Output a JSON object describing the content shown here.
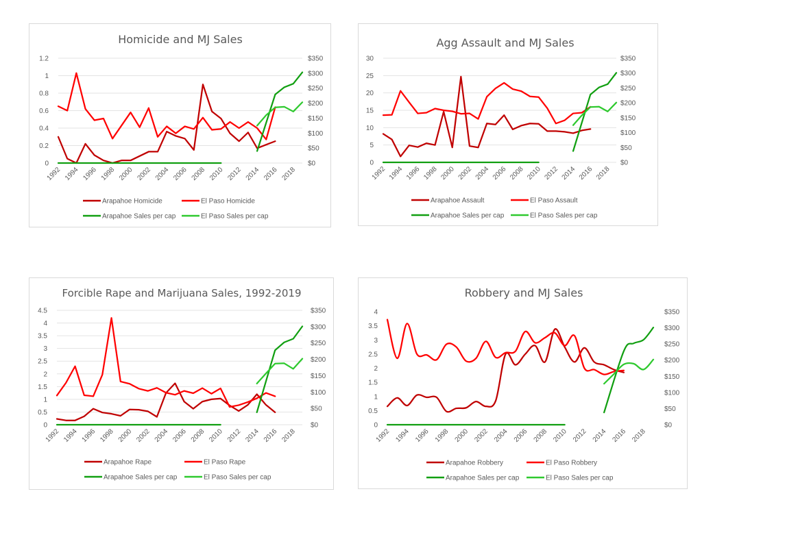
{
  "chart_data": [
    {
      "type": "line",
      "title": "Homicide and MJ Sales",
      "xlabel": "",
      "ylabel": "",
      "y2label": "",
      "x_ticks": [
        "1992",
        "1994",
        "1996",
        "1998",
        "2000",
        "2002",
        "2004",
        "2006",
        "2008",
        "2010",
        "2012",
        "2014",
        "2016",
        "2018"
      ],
      "left_ticks": [
        "0",
        "0.2",
        "0.4",
        "0.6",
        "0.8",
        "1",
        "1.2"
      ],
      "right_ticks": [
        "$0",
        "$50",
        "$100",
        "$150",
        "$200",
        "$250",
        "$300",
        "$350"
      ],
      "ylim": [
        0,
        1.2
      ],
      "y2lim": [
        0,
        350
      ],
      "xlim": [
        1992,
        2019
      ],
      "grid": true,
      "legend_position": "bottom",
      "smooth": false,
      "series": [
        {
          "name": "Arapahoe Homicide",
          "axis": "left",
          "color": "#c00000",
          "x": [
            1992,
            1993,
            1994,
            1995,
            1996,
            1997,
            1998,
            1999,
            2000,
            2001,
            2002,
            2003,
            2004,
            2005,
            2006,
            2007,
            2008,
            2009,
            2010,
            2011,
            2012,
            2013,
            2014,
            2015,
            2016
          ],
          "y": [
            0.3,
            0.05,
            0.0,
            0.22,
            0.09,
            0.03,
            0.0,
            0.03,
            0.03,
            0.08,
            0.13,
            0.13,
            0.36,
            0.31,
            0.28,
            0.15,
            0.9,
            0.59,
            0.51,
            0.34,
            0.25,
            0.35,
            0.17,
            0.21,
            0.25
          ]
        },
        {
          "name": "El Paso Homicide",
          "axis": "left",
          "color": "#ff0000",
          "x": [
            1992,
            1993,
            1994,
            1995,
            1996,
            1997,
            1998,
            1999,
            2000,
            2001,
            2002,
            2003,
            2004,
            2005,
            2006,
            2007,
            2008,
            2009,
            2010,
            2011,
            2012,
            2013,
            2014,
            2015,
            2016
          ],
          "y": [
            0.65,
            0.6,
            1.03,
            0.62,
            0.49,
            0.51,
            0.28,
            0.43,
            0.58,
            0.41,
            0.63,
            0.3,
            0.42,
            0.34,
            0.42,
            0.39,
            0.52,
            0.38,
            0.39,
            0.47,
            0.4,
            0.47,
            0.4,
            0.27,
            0.64
          ]
        },
        {
          "name": "Arapahoe Sales per cap",
          "axis": "right",
          "color": "#119f11",
          "x": [
            1992,
            2010,
            null,
            2014,
            2016,
            2017,
            2018,
            2019
          ],
          "y": [
            0,
            0,
            null,
            40,
            229,
            253,
            265,
            303
          ]
        },
        {
          "name": "El Paso Sales per cap",
          "axis": "right",
          "color": "#2ec92e",
          "x": [
            2014,
            2015,
            2016,
            2017,
            2018,
            2019
          ],
          "y": [
            125,
            160,
            186,
            188,
            172,
            203
          ]
        }
      ]
    },
    {
      "type": "line",
      "title": "Agg Assault and MJ Sales",
      "xlabel": "",
      "ylabel": "",
      "y2label": "",
      "x_ticks": [
        "1992",
        "1994",
        "1996",
        "1998",
        "2000",
        "2002",
        "2004",
        "2006",
        "2008",
        "2010",
        "2012",
        "2014",
        "2016",
        "2018"
      ],
      "left_ticks": [
        "0",
        "5",
        "10",
        "15",
        "20",
        "25",
        "30"
      ],
      "right_ticks": [
        "$0",
        "$50",
        "$100",
        "$150",
        "$200",
        "$250",
        "$300",
        "$350"
      ],
      "ylim": [
        0,
        30
      ],
      "y2lim": [
        0,
        350
      ],
      "xlim": [
        1992,
        2019
      ],
      "grid": true,
      "legend_position": "bottom",
      "smooth": false,
      "series": [
        {
          "name": "Arapahoe Assault",
          "axis": "left",
          "color": "#c00000",
          "x": [
            1992,
            1993,
            1994,
            1995,
            1996,
            1997,
            1998,
            1999,
            2000,
            2001,
            2002,
            2003,
            2004,
            2005,
            2006,
            2007,
            2008,
            2009,
            2010,
            2011,
            2012,
            2013,
            2014,
            2015,
            2016
          ],
          "y": [
            8.2,
            6.6,
            1.7,
            4.9,
            4.4,
            5.5,
            5.0,
            14.6,
            4.3,
            24.7,
            4.7,
            4.3,
            11.2,
            10.9,
            13.6,
            9.5,
            10.6,
            11.2,
            11.1,
            9.0,
            9.0,
            8.8,
            8.4,
            9.2,
            9.6
          ]
        },
        {
          "name": "El Paso Assault",
          "axis": "left",
          "color": "#ff0000",
          "x": [
            1992,
            1993,
            1994,
            1995,
            1996,
            1997,
            1998,
            1999,
            2000,
            2001,
            2002,
            2003,
            2004,
            2005,
            2006,
            2007,
            2008,
            2009,
            2010,
            2011,
            2012,
            2013,
            2014,
            2015,
            2016
          ],
          "y": [
            13.6,
            13.7,
            20.6,
            17.3,
            14.1,
            14.3,
            15.5,
            15.0,
            14.7,
            14.0,
            14.1,
            12.5,
            18.9,
            21.3,
            22.9,
            21.1,
            20.5,
            19.0,
            18.8,
            15.6,
            11.2,
            12.1,
            14.1,
            14.3,
            16.0
          ]
        },
        {
          "name": "Arapahoe Sales per cap",
          "axis": "right",
          "color": "#119f11",
          "x": [
            1992,
            2010,
            null,
            2014,
            2016,
            2017,
            2018,
            2019
          ],
          "y": [
            0,
            0,
            null,
            38,
            228,
            252,
            263,
            301
          ]
        },
        {
          "name": "El Paso Sales per cap",
          "axis": "right",
          "color": "#2ec92e",
          "x": [
            2014,
            2015,
            2016,
            2017,
            2018,
            2019
          ],
          "y": [
            125,
            158,
            186,
            187,
            171,
            201
          ]
        }
      ]
    },
    {
      "type": "line",
      "title": "Forcible Rape and Marijuana Sales, 1992-2019",
      "xlabel": "",
      "ylabel": "",
      "y2label": "",
      "x_ticks": [
        "1992",
        "1994",
        "1996",
        "1998",
        "2000",
        "2002",
        "2004",
        "2006",
        "2008",
        "2010",
        "2012",
        "2014",
        "2016",
        "2018"
      ],
      "left_ticks": [
        "0",
        "0.5",
        "1",
        "1.5",
        "2",
        "2.5",
        "3",
        "3.5",
        "4",
        "4.5"
      ],
      "right_ticks": [
        "$0",
        "$50",
        "$100",
        "$150",
        "$200",
        "$250",
        "$300",
        "$350"
      ],
      "ylim": [
        0,
        4.5
      ],
      "y2lim": [
        0,
        350
      ],
      "xlim": [
        1992,
        2019
      ],
      "grid": true,
      "legend_position": "bottom",
      "smooth": false,
      "series": [
        {
          "name": "Arapahoe Rape",
          "axis": "left",
          "color": "#c00000",
          "x": [
            1992,
            1993,
            1994,
            1995,
            1996,
            1997,
            1998,
            1999,
            2000,
            2001,
            2002,
            2003,
            2004,
            2005,
            2006,
            2007,
            2008,
            2009,
            2010,
            2011,
            2012,
            2013,
            2014,
            2015,
            2016
          ],
          "y": [
            0.23,
            0.17,
            0.17,
            0.33,
            0.63,
            0.48,
            0.43,
            0.35,
            0.6,
            0.59,
            0.53,
            0.31,
            1.25,
            1.63,
            0.91,
            0.63,
            0.91,
            1.0,
            1.03,
            0.76,
            0.54,
            0.78,
            1.2,
            0.78,
            0.49
          ]
        },
        {
          "name": "El Paso Rape",
          "axis": "left",
          "color": "#ff0000",
          "x": [
            1992,
            1993,
            1994,
            1995,
            1996,
            1997,
            1998,
            1999,
            2000,
            2001,
            2002,
            2003,
            2004,
            2005,
            2006,
            2007,
            2008,
            2009,
            2010,
            2011,
            2012,
            2013,
            2014,
            2015,
            2016
          ],
          "y": [
            1.15,
            1.65,
            2.3,
            1.16,
            1.12,
            1.97,
            4.2,
            1.7,
            1.61,
            1.42,
            1.33,
            1.45,
            1.26,
            1.18,
            1.33,
            1.24,
            1.44,
            1.22,
            1.43,
            0.7,
            0.77,
            0.89,
            1.04,
            1.25,
            1.12
          ]
        },
        {
          "name": "Arapahoe Sales per cap",
          "axis": "right",
          "color": "#119f11",
          "x": [
            1992,
            2010,
            null,
            2014,
            2016,
            2017,
            2018,
            2019
          ],
          "y": [
            0,
            0,
            null,
            38,
            228,
            252,
            263,
            301
          ]
        },
        {
          "name": "El Paso Sales per cap",
          "axis": "right",
          "color": "#2ec92e",
          "x": [
            2014,
            2015,
            2016,
            2017,
            2018,
            2019
          ],
          "y": [
            126,
            157,
            187,
            188,
            171,
            202
          ]
        }
      ]
    },
    {
      "type": "line",
      "title": "Robbery and MJ Sales",
      "xlabel": "",
      "ylabel": "",
      "y2label": "",
      "x_ticks": [
        "1992",
        "1994",
        "1996",
        "1998",
        "2000",
        "2002",
        "2004",
        "2006",
        "2008",
        "2010",
        "2012",
        "2014",
        "2016",
        "2018"
      ],
      "left_ticks": [
        "0",
        "0.5",
        "1",
        "1.5",
        "2",
        "2.5",
        "3",
        "3.5",
        "4"
      ],
      "right_ticks": [
        "$0",
        "$50",
        "$100",
        "$150",
        "$200",
        "$250",
        "$300",
        "$350"
      ],
      "ylim": [
        0,
        4
      ],
      "y2lim": [
        0,
        350
      ],
      "xlim": [
        1992,
        2019
      ],
      "grid": false,
      "legend_position": "bottom",
      "smooth": true,
      "series": [
        {
          "name": "Arapahoe Robbery",
          "axis": "left",
          "color": "#c00000",
          "x": [
            1992,
            1993,
            1994,
            1995,
            1996,
            1997,
            1998,
            1999,
            2000,
            2001,
            2002,
            2003,
            2004,
            2005,
            2006,
            2007,
            2008,
            2009,
            2010,
            2011,
            2012,
            2013,
            2014,
            2015,
            2016
          ],
          "y": [
            0.65,
            0.95,
            0.68,
            1.05,
            0.97,
            0.97,
            0.47,
            0.58,
            0.6,
            0.82,
            0.65,
            0.85,
            2.5,
            2.12,
            2.5,
            2.8,
            2.22,
            3.38,
            2.75,
            2.22,
            2.72,
            2.22,
            2.12,
            1.95,
            1.85
          ]
        },
        {
          "name": "El Paso Robbery",
          "axis": "left",
          "color": "#ff0000",
          "x": [
            1992,
            1993,
            1994,
            1995,
            1996,
            1997,
            1998,
            1999,
            2000,
            2001,
            2002,
            2003,
            2004,
            2005,
            2006,
            2007,
            2008,
            2009,
            2010,
            2011,
            2012,
            2013,
            2014,
            2015,
            2016
          ],
          "y": [
            3.72,
            2.35,
            3.58,
            2.5,
            2.47,
            2.3,
            2.85,
            2.75,
            2.25,
            2.35,
            2.95,
            2.38,
            2.55,
            2.6,
            3.3,
            2.9,
            3.08,
            3.25,
            2.8,
            3.15,
            2.0,
            1.95,
            1.78,
            1.88,
            1.92
          ]
        },
        {
          "name": "Arapahoe Sales per cap",
          "axis": "right",
          "color": "#119f11",
          "x": [
            1992,
            2010,
            null,
            2014,
            2016,
            2017,
            2018,
            2019
          ],
          "y": [
            0,
            0,
            null,
            38,
            228,
            252,
            263,
            301
          ]
        },
        {
          "name": "El Paso Sales per cap",
          "axis": "right",
          "color": "#2ec92e",
          "x": [
            2014,
            2015,
            2016,
            2017,
            2018,
            2019
          ],
          "y": [
            127,
            157,
            187,
            189,
            171,
            202
          ]
        }
      ]
    }
  ]
}
